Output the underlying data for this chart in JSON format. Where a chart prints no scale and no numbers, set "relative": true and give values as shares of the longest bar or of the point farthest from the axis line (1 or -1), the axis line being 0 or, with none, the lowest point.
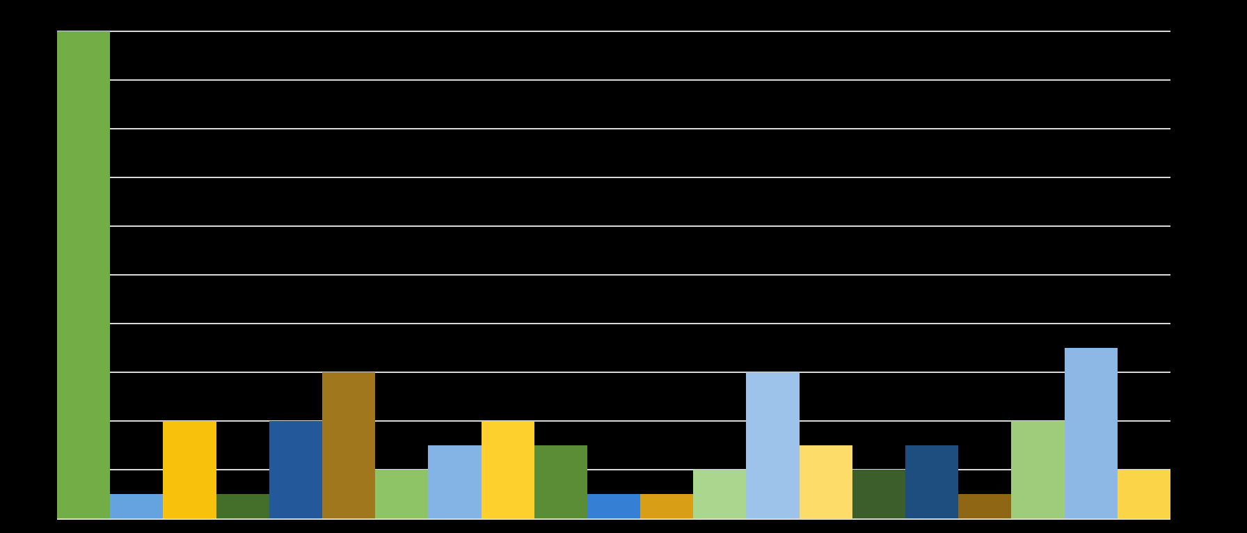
{
  "chart_data": {
    "type": "bar",
    "relative": true,
    "categories": [
      null,
      null,
      null,
      null,
      null,
      null,
      null,
      null,
      null,
      null,
      null,
      null,
      null,
      null,
      null,
      null,
      null,
      null,
      null,
      null,
      null
    ],
    "values": [
      1,
      0.05,
      0.2,
      0.05,
      0.2,
      0.3,
      0.1,
      0.15,
      0.2,
      0.15,
      0.05,
      0.05,
      0.1,
      0.3,
      0.15,
      0.1,
      0.15,
      0.05,
      0.2,
      0.35,
      0.1
    ],
    "colors": [
      "#72ad45",
      "#64a2e0",
      "#f7c10c",
      "#446f2b",
      "#23599a",
      "#a0771c",
      "#8fc466",
      "#84b3e6",
      "#fdd02e",
      "#5b8d37",
      "#3580d4",
      "#d89e16",
      "#abd68e",
      "#9dc3eb",
      "#fedc6a",
      "#3c5e2a",
      "#1e4d80",
      "#8f6714",
      "#9fcc7a",
      "#8db8e6",
      "#fcd447"
    ],
    "grid": "y"
  }
}
